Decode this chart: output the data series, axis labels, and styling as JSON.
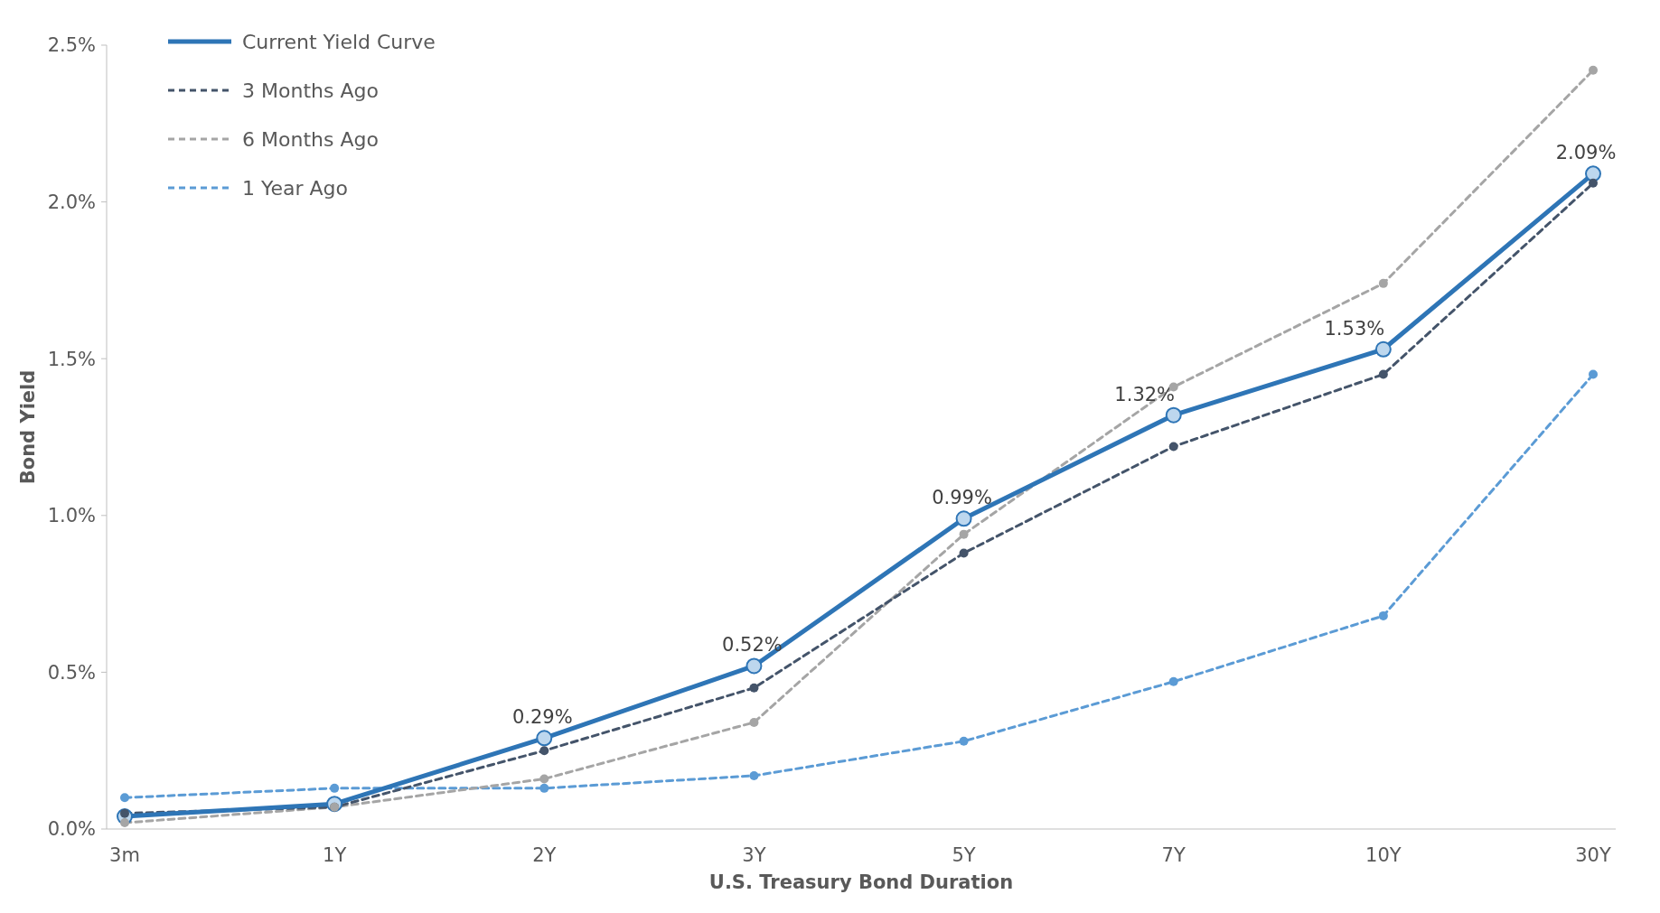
{
  "chart_data": {
    "type": "line",
    "xlabel": "U.S. Treasury Bond Duration",
    "ylabel": "Bond Yield",
    "categories": [
      "3m",
      "1Y",
      "2Y",
      "3Y",
      "5Y",
      "7Y",
      "10Y",
      "30Y"
    ],
    "ylim": [
      0,
      2.5
    ],
    "yticks": [
      {
        "value": 0,
        "label": "0.0%"
      },
      {
        "value": 0.5,
        "label": "0.5%"
      },
      {
        "value": 1,
        "label": "1.0%"
      },
      {
        "value": 1.5,
        "label": "1.5%"
      },
      {
        "value": 2,
        "label": "2.0%"
      },
      {
        "value": 2.5,
        "label": "2.5%"
      }
    ],
    "grid": false,
    "legend": "top left",
    "marker": "circle",
    "series": [
      {
        "name": "Current Yield Curve",
        "color": "#2e75b6",
        "line_style": "solid",
        "values": [
          0.04,
          0.08,
          0.29,
          0.52,
          0.99,
          1.32,
          1.53,
          2.09
        ],
        "value_labels": [
          null,
          null,
          "0.29%",
          "0.52%",
          "0.99%",
          "1.32%",
          "1.53%",
          "2.09%"
        ]
      },
      {
        "name": "3 Months Ago",
        "color": "#44546a",
        "line_style": "dashed",
        "values": [
          0.05,
          0.07,
          0.25,
          0.45,
          0.88,
          1.22,
          1.45,
          2.06
        ]
      },
      {
        "name": "6 Months Ago",
        "color": "#a5a5a5",
        "line_style": "dashed",
        "values": [
          0.02,
          0.07,
          0.16,
          0.34,
          0.94,
          1.41,
          1.74,
          2.42
        ]
      },
      {
        "name": "1 Year Ago",
        "color": "#5b9bd5",
        "line_style": "dashed",
        "values": [
          0.1,
          0.13,
          0.13,
          0.17,
          0.28,
          0.47,
          0.68,
          1.45
        ]
      }
    ]
  }
}
